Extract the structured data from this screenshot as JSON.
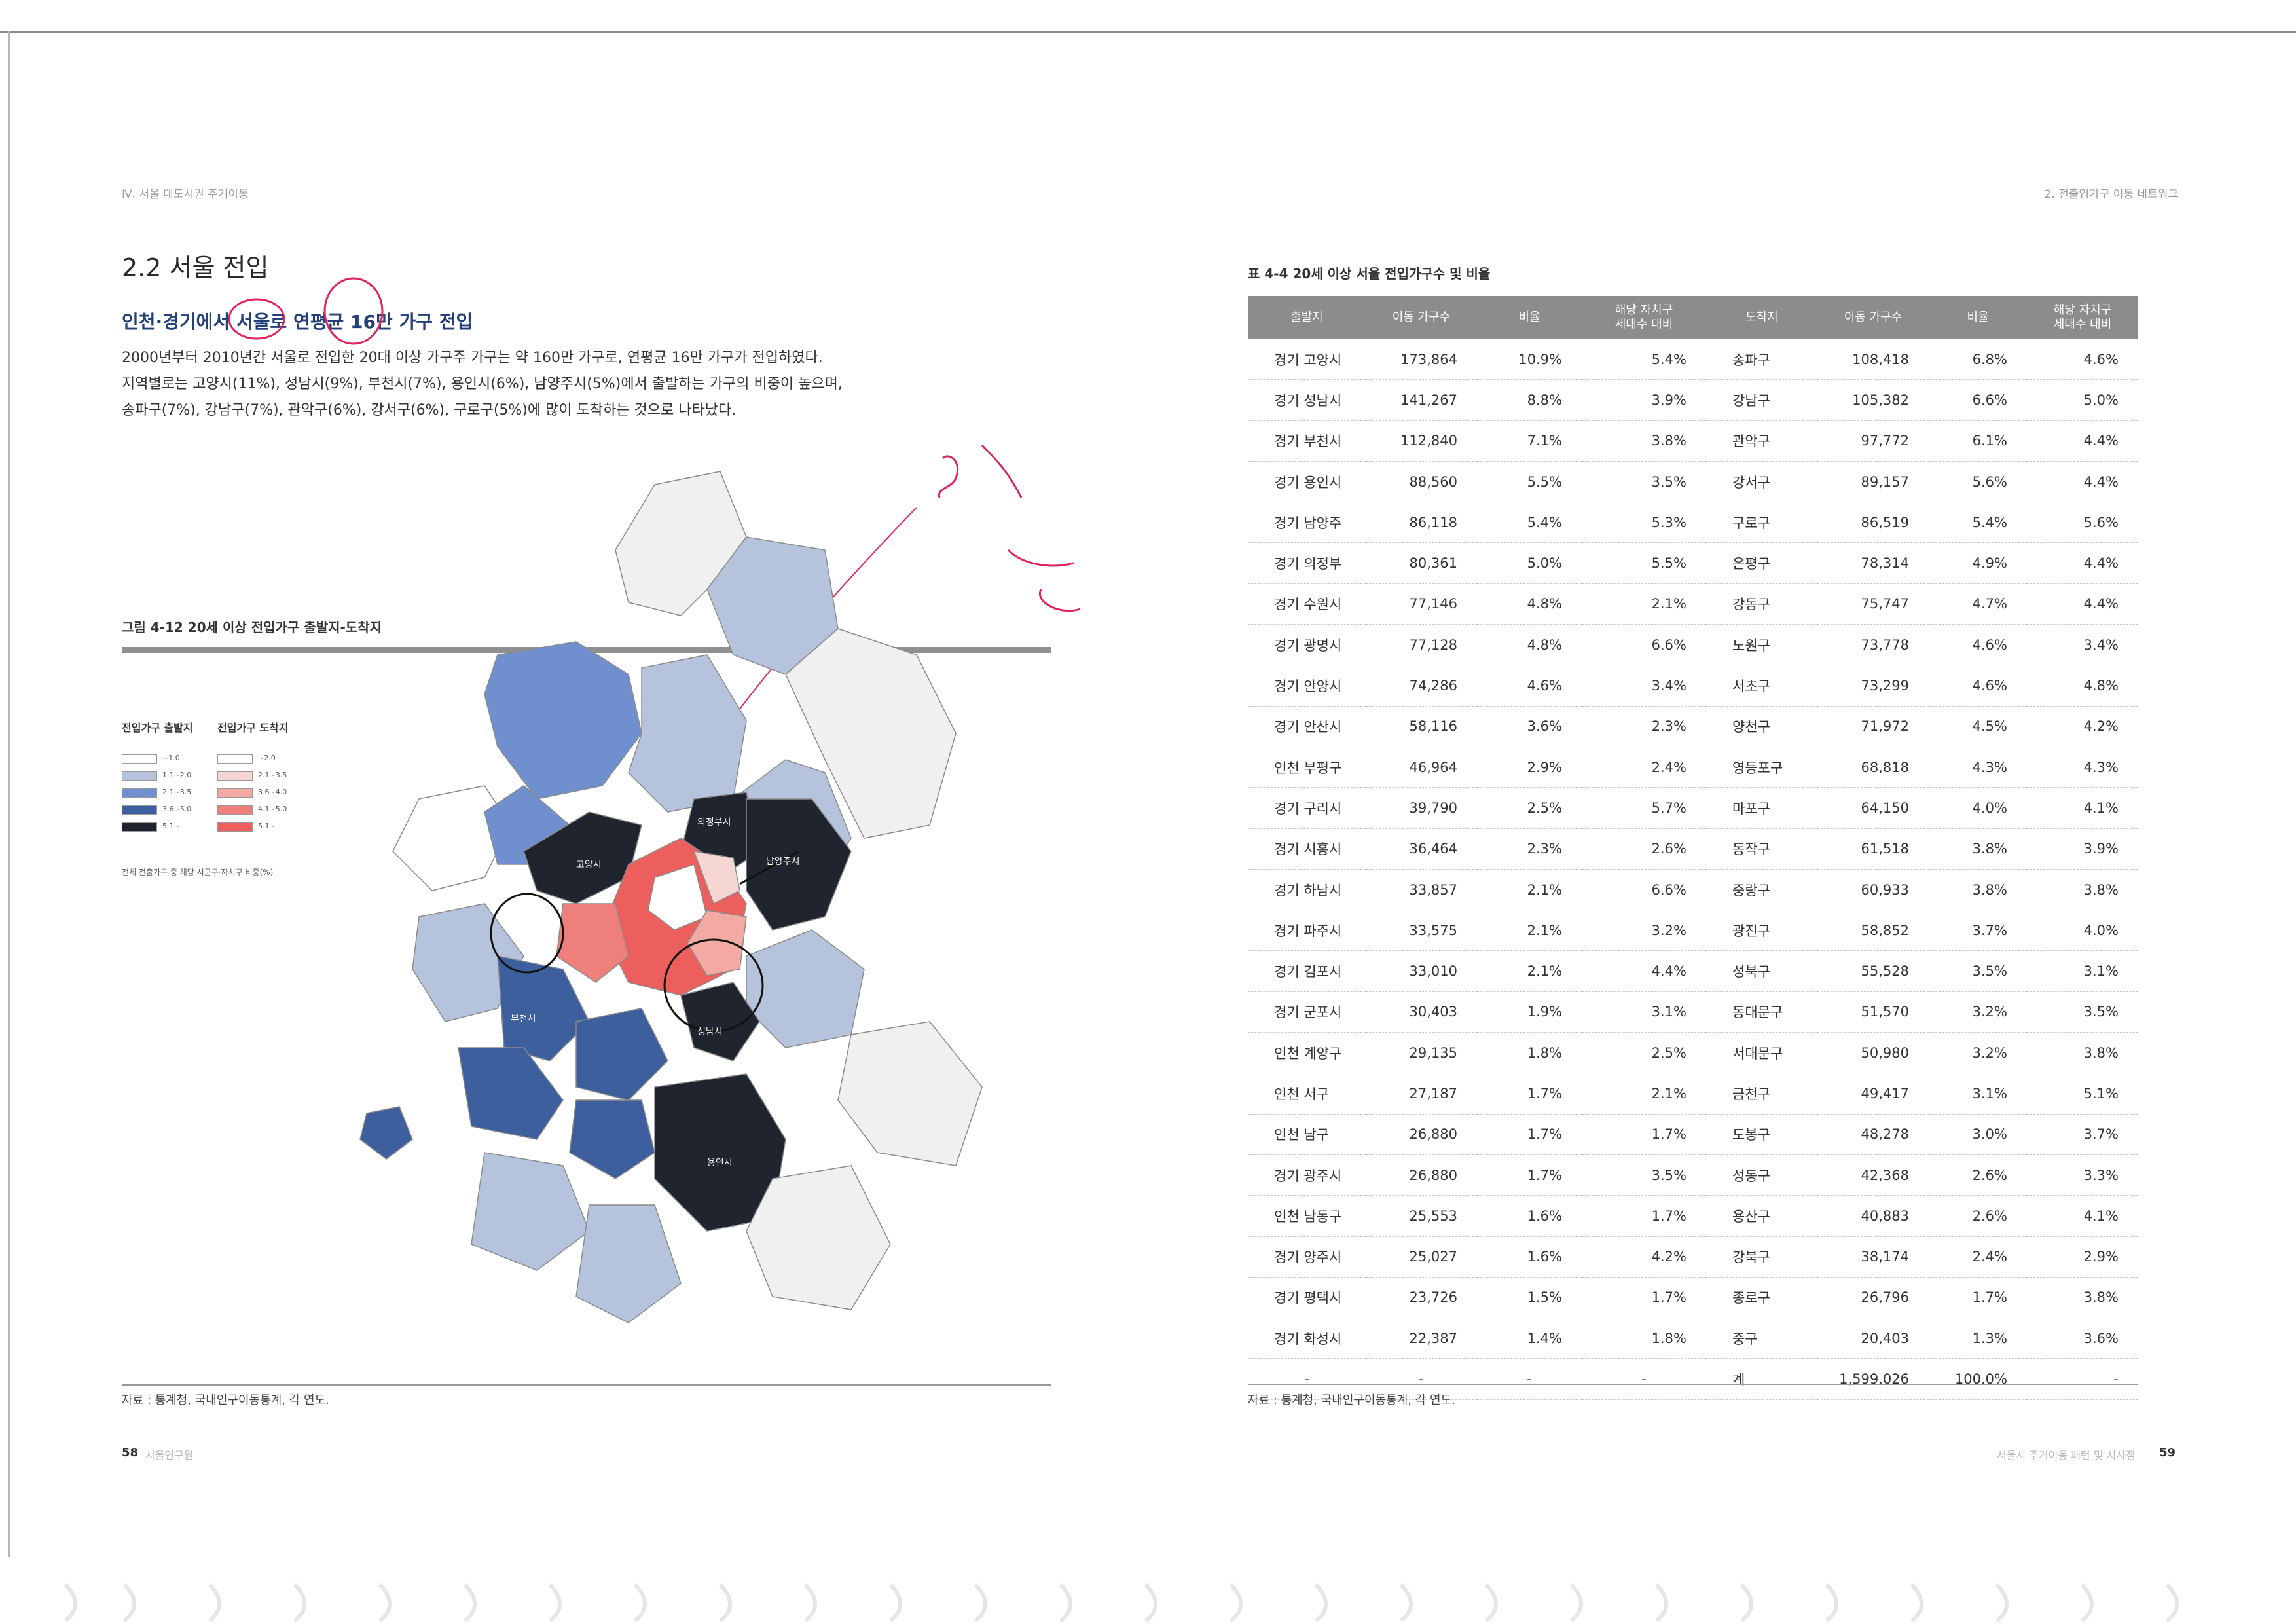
{
  "left_page": {
    "running_header": "Ⅳ. 서울 대도시권 주거이동",
    "section_title": "2.2 서울 전입",
    "subtitle": "인천·경기에서 서울로 연평균 16만 가구 전입",
    "body_lines": [
      "2000년부터 2010년간 서울로 전입한 20대 이상 가구주 가구는 약 160만 가구로, 연평균 16만 가구가 전입하였다.",
      "지역별로는 고양시(11%), 성남시(9%), 부천시(7%), 용인시(6%), 남양주시(5%)에서 출발하는 가구의 비중이 높으며,",
      "송파구(7%), 강남구(7%), 관악구(6%), 강서구(6%), 구로구(5%)에 많이 도착하는 것으로 나타났다."
    ],
    "figure_title": "그림 4-12 20세 이상 전입가구 출발지-도착지",
    "legend": {
      "origin_title": "전입가구 출발지",
      "destination_title": "전입가구 도착지",
      "origin_items": [
        {
          "label": "~1.0",
          "color": "#ffffff"
        },
        {
          "label": "1.1~2.0",
          "color": "#b6c3dd"
        },
        {
          "label": "2.1~3.5",
          "color": "#6f8fce"
        },
        {
          "label": "3.6~5.0",
          "color": "#3e5f9e"
        },
        {
          "label": "5.1~",
          "color": "#1f242e"
        }
      ],
      "destination_items": [
        {
          "label": "~2.0",
          "color": "#ffffff"
        },
        {
          "label": "2.1~3.5",
          "color": "#f6d6d2"
        },
        {
          "label": "3.6~4.0",
          "color": "#f2aaa3"
        },
        {
          "label": "4.1~5.0",
          "color": "#ef7f7a"
        },
        {
          "label": "5.1~",
          "color": "#ec5f5c"
        }
      ],
      "note": "전체 전출가구 중 해당 시군구·자치구 비중(%)"
    },
    "map_labels": [
      "고양시",
      "남양주시",
      "의정부시",
      "부천시",
      "성남시",
      "용인시"
    ],
    "source": "자료 : 통계청, 국내인구이동통계, 각 연도.",
    "page_number": "58",
    "footer_text": "서울연구원"
  },
  "right_page": {
    "running_header": "2. 전출입가구 이동 네트워크",
    "table_title": "표 4-4 20세 이상 서울 전입가구수 및 비율",
    "table_headers": [
      "출발지",
      "이동 가구수",
      "비율",
      "해당 자치구\n세대수 대비",
      "도착지",
      "이동 가구수",
      "비율",
      "해당 자치구\n세대수 대비"
    ],
    "table_rows": [
      [
        "경기 고양시",
        "173,864",
        "10.9%",
        "5.4%",
        "송파구",
        "108,418",
        "6.8%",
        "4.6%"
      ],
      [
        "경기 성남시",
        "141,267",
        "8.8%",
        "3.9%",
        "강남구",
        "105,382",
        "6.6%",
        "5.0%"
      ],
      [
        "경기 부천시",
        "112,840",
        "7.1%",
        "3.8%",
        "관악구",
        "97,772",
        "6.1%",
        "4.4%"
      ],
      [
        "경기 용인시",
        "88,560",
        "5.5%",
        "3.5%",
        "강서구",
        "89,157",
        "5.6%",
        "4.4%"
      ],
      [
        "경기 남양주",
        "86,118",
        "5.4%",
        "5.3%",
        "구로구",
        "86,519",
        "5.4%",
        "5.6%"
      ],
      [
        "경기 의정부",
        "80,361",
        "5.0%",
        "5.5%",
        "은평구",
        "78,314",
        "4.9%",
        "4.4%"
      ],
      [
        "경기 수원시",
        "77,146",
        "4.8%",
        "2.1%",
        "강동구",
        "75,747",
        "4.7%",
        "4.4%"
      ],
      [
        "경기 광명시",
        "77,128",
        "4.8%",
        "6.6%",
        "노원구",
        "73,778",
        "4.6%",
        "3.4%"
      ],
      [
        "경기 안양시",
        "74,286",
        "4.6%",
        "3.4%",
        "서초구",
        "73,299",
        "4.6%",
        "4.8%"
      ],
      [
        "경기 안산시",
        "58,116",
        "3.6%",
        "2.3%",
        "양천구",
        "71,972",
        "4.5%",
        "4.2%"
      ],
      [
        "인천 부평구",
        "46,964",
        "2.9%",
        "2.4%",
        "영등포구",
        "68,818",
        "4.3%",
        "4.3%"
      ],
      [
        "경기 구리시",
        "39,790",
        "2.5%",
        "5.7%",
        "마포구",
        "64,150",
        "4.0%",
        "4.1%"
      ],
      [
        "경기 시흥시",
        "36,464",
        "2.3%",
        "2.6%",
        "동작구",
        "61,518",
        "3.8%",
        "3.9%"
      ],
      [
        "경기 하남시",
        "33,857",
        "2.1%",
        "6.6%",
        "중랑구",
        "60,933",
        "3.8%",
        "3.8%"
      ],
      [
        "경기 파주시",
        "33,575",
        "2.1%",
        "3.2%",
        "광진구",
        "58,852",
        "3.7%",
        "4.0%"
      ],
      [
        "경기 김포시",
        "33,010",
        "2.1%",
        "4.4%",
        "성북구",
        "55,528",
        "3.5%",
        "3.1%"
      ],
      [
        "경기 군포시",
        "30,403",
        "1.9%",
        "3.1%",
        "동대문구",
        "51,570",
        "3.2%",
        "3.5%"
      ],
      [
        "인천 계양구",
        "29,135",
        "1.8%",
        "2.5%",
        "서대문구",
        "50,980",
        "3.2%",
        "3.8%"
      ],
      [
        "인천 서구",
        "27,187",
        "1.7%",
        "2.1%",
        "금천구",
        "49,417",
        "3.1%",
        "5.1%"
      ],
      [
        "인천 남구",
        "26,880",
        "1.7%",
        "1.7%",
        "도봉구",
        "48,278",
        "3.0%",
        "3.7%"
      ],
      [
        "경기 광주시",
        "26,880",
        "1.7%",
        "3.5%",
        "성동구",
        "42,368",
        "2.6%",
        "3.3%"
      ],
      [
        "인천 남동구",
        "25,553",
        "1.6%",
        "1.7%",
        "용산구",
        "40,883",
        "2.6%",
        "4.1%"
      ],
      [
        "경기 양주시",
        "25,027",
        "1.6%",
        "4.2%",
        "강북구",
        "38,174",
        "2.4%",
        "2.9%"
      ],
      [
        "경기 평택시",
        "23,726",
        "1.5%",
        "1.7%",
        "종로구",
        "26,796",
        "1.7%",
        "3.8%"
      ],
      [
        "경기 화성시",
        "22,387",
        "1.4%",
        "1.8%",
        "중구",
        "20,403",
        "1.3%",
        "3.6%"
      ],
      [
        "-",
        "-",
        "-",
        "-",
        "계",
        "1,599,026",
        "100.0%",
        "-"
      ]
    ],
    "source": "자료 : 통계청, 국내인구이동통계, 각 연도.",
    "footer_text": "서울시 주거이동 패턴 및 시사점",
    "page_number": "59"
  },
  "colors": {
    "header_gray": "#8c8c8c",
    "subtitle_blue": "#24407a",
    "annotation_red": "#e0245e"
  }
}
